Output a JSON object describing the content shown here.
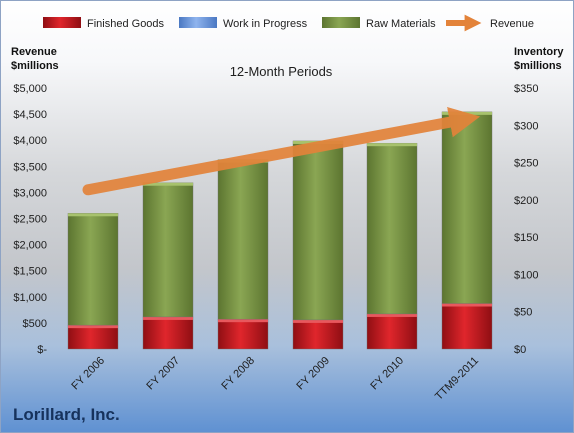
{
  "chart_data": {
    "type": "bar",
    "stacked": true,
    "title": "12-Month Periods",
    "company": "Lorillard, Inc.",
    "categories": [
      "FY 2006",
      "FY 2007",
      "FY 2008",
      "FY 2009",
      "FY 2010",
      "TTM9-2011"
    ],
    "series": [
      {
        "name": "Finished Goods",
        "axis": "right",
        "color": "#c0171d",
        "values": [
          32,
          43,
          40,
          39,
          47,
          61
        ]
      },
      {
        "name": "Work in Progress",
        "axis": "right",
        "color": "#6b9be6",
        "values": [
          0,
          0,
          0,
          0,
          0,
          0
        ]
      },
      {
        "name": "Raw Materials",
        "axis": "right",
        "color": "#7f9a48",
        "values": [
          150,
          180,
          214,
          240,
          229,
          257
        ]
      }
    ],
    "line_series": {
      "name": "Revenue",
      "axis": "left",
      "color": "#e3833a",
      "values": [
        3050,
        3350,
        3580,
        3750,
        4050,
        4400
      ]
    },
    "left_axis": {
      "title_line1": "Revenue",
      "title_line2": "$millions",
      "ylim": [
        0,
        5000
      ],
      "ticks": [
        "$-",
        "$500",
        "$1,000",
        "$1,500",
        "$2,000",
        "$2,500",
        "$3,000",
        "$3,500",
        "$4,000",
        "$4,500",
        "$5,000"
      ]
    },
    "right_axis": {
      "title_line1": "Inventory",
      "title_line2": "$millions",
      "ylim": [
        0,
        350
      ],
      "ticks": [
        "$0",
        "$50",
        "$100",
        "$150",
        "$200",
        "$250",
        "$300",
        "$350"
      ]
    },
    "legend_position": "top",
    "grid": false
  }
}
